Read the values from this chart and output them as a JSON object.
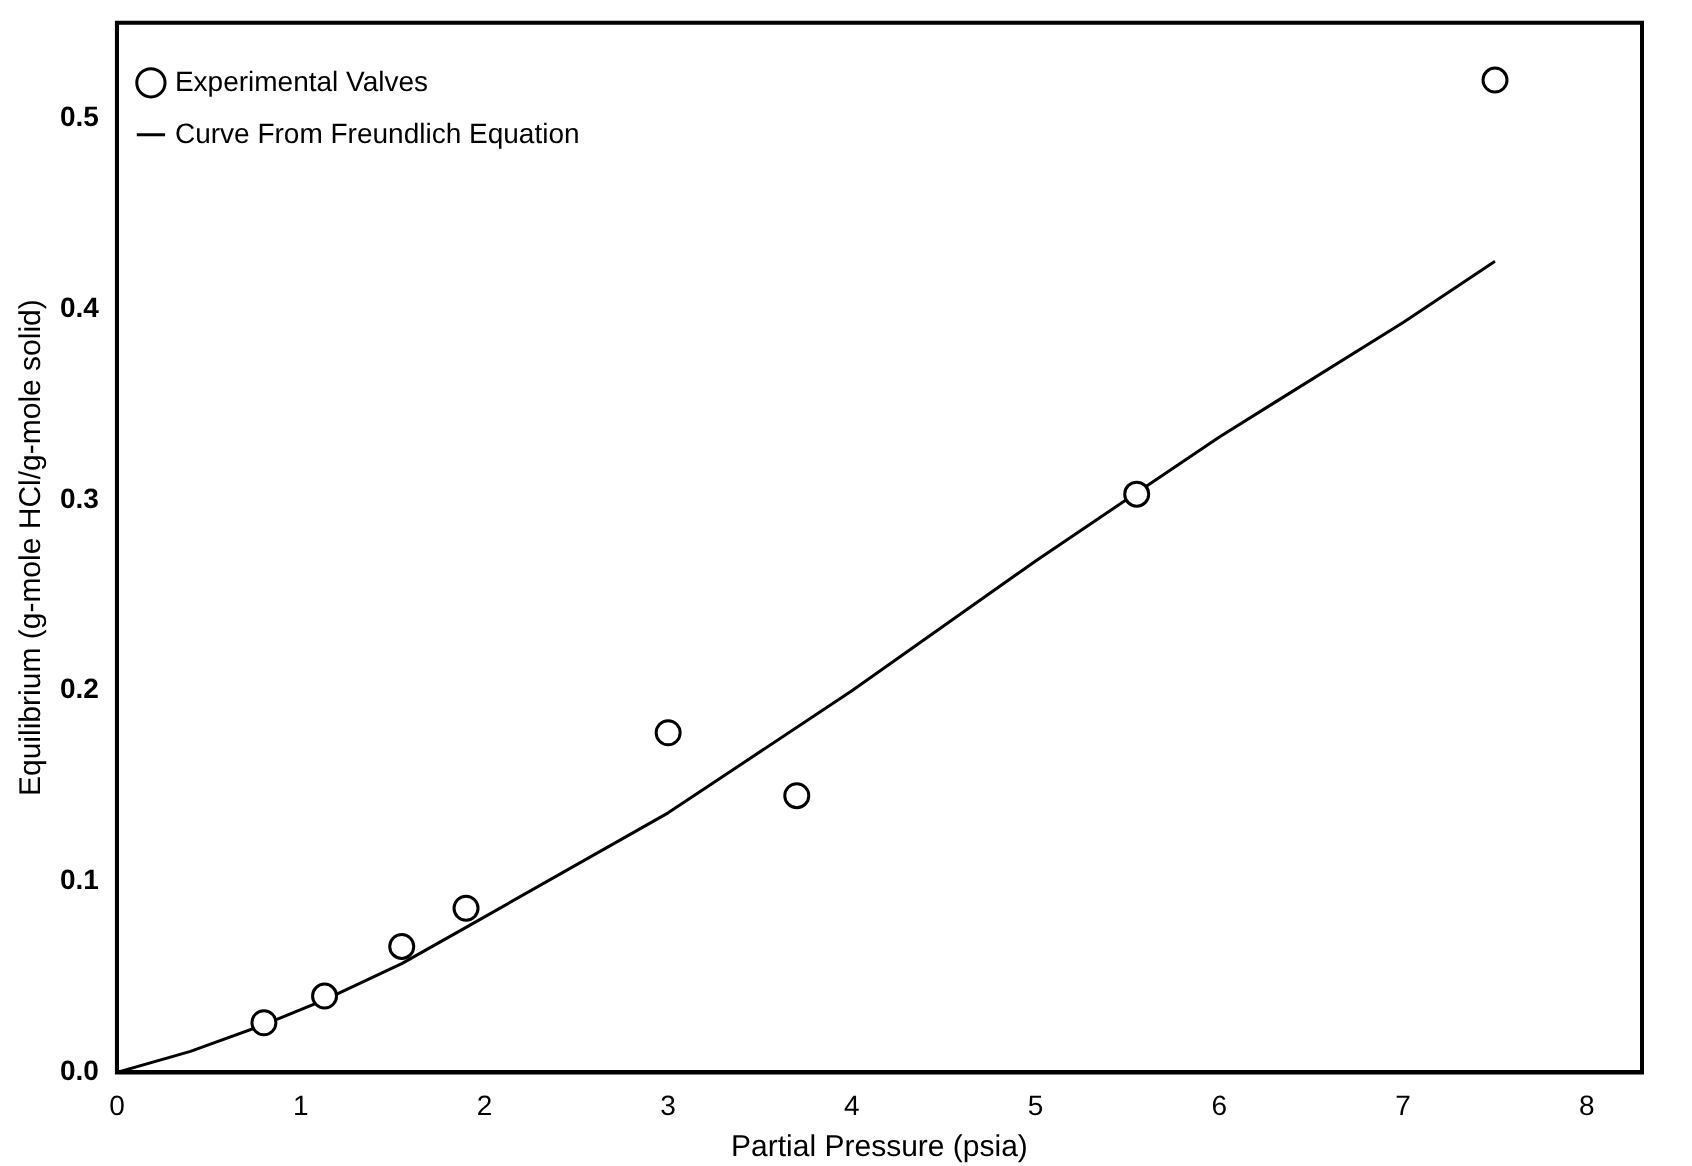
{
  "chart_data": {
    "type": "scatter",
    "xlabel": "Partial Pressure (psia)",
    "ylabel": "Equilibrium (g-mole HCl/g-mole solid)",
    "xlim": [
      0,
      8.3
    ],
    "xticks": [
      0,
      1,
      2,
      3,
      4,
      5,
      6,
      7,
      8
    ],
    "ylim": [
      0,
      0.55
    ],
    "yticks": [
      {
        "value": 0,
        "label": "0.0"
      },
      0.1,
      0.2,
      0.3,
      0.4,
      0.5
    ],
    "grid": false,
    "legend": "top left",
    "series": [
      {
        "name": "Experimental Valves",
        "marker": "circle",
        "color": "#000000",
        "x": [
          0.8,
          1.13,
          1.55,
          1.9,
          3.0,
          3.7,
          5.55,
          7.5
        ],
        "values": [
          0.026,
          0.04,
          0.066,
          0.086,
          0.178,
          0.145,
          0.303,
          0.52
        ]
      },
      {
        "name": "Curve From Freundlich Equation",
        "type": "line",
        "marker": "none",
        "line_style": "solid",
        "color": "#000000",
        "x": [
          0,
          0.4,
          0.8,
          1.13,
          1.55,
          1.9,
          3,
          4,
          5,
          6,
          7,
          7.5
        ],
        "values": [
          0,
          0.011,
          0.025,
          0.038,
          0.057,
          0.076,
          0.136,
          0.2,
          0.268,
          0.333,
          0.393,
          0.425
        ]
      }
    ]
  }
}
